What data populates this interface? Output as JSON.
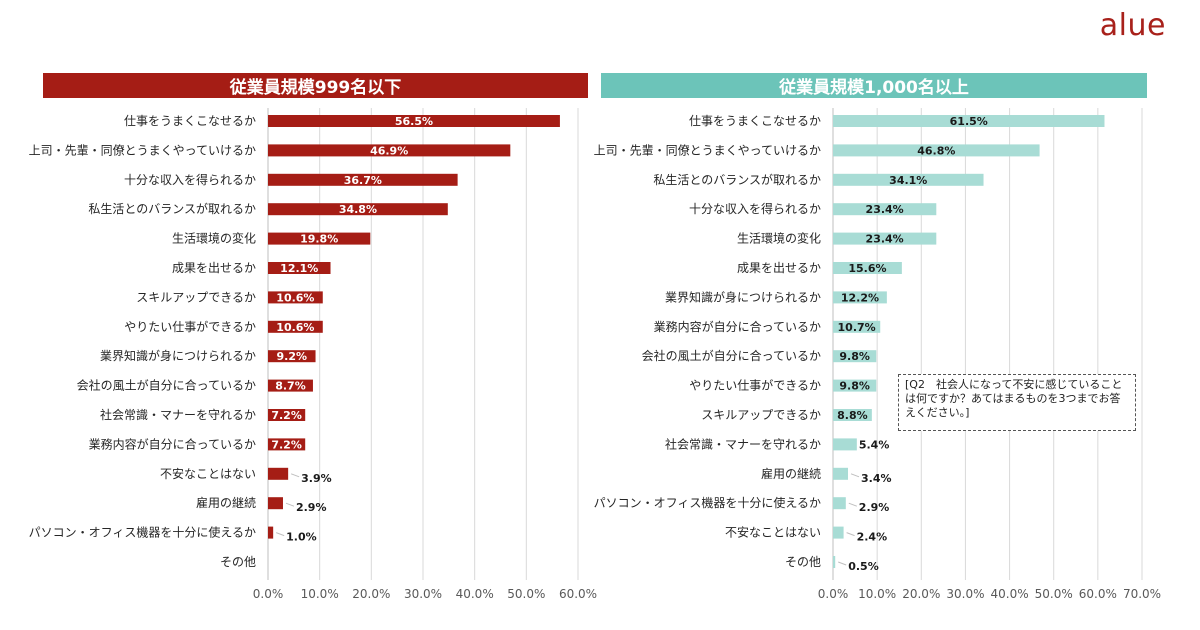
{
  "brand": {
    "logo_text": "alue",
    "accent": "#a8211b"
  },
  "note": {
    "text": "[Q2　社会人になって不安に感じていることは何ですか？あてはまるものを3つまでお答えください。]"
  },
  "chart_data": [
    {
      "type": "bar",
      "orientation": "horizontal",
      "title": "従業員規模999名以下",
      "color": "#a51d15",
      "categories": [
        "仕事をうまくこなせるか",
        "上司・先輩・同僚とうまくやっていけるか",
        "十分な収入を得られるか",
        "私生活とのバランスが取れるか",
        "生活環境の変化",
        "成果を出せるか",
        "スキルアップできるか",
        "やりたい仕事ができるか",
        "業界知識が身につけられるか",
        "会社の風土が自分に合っているか",
        "社会常識・マナーを守れるか",
        "業務内容が自分に合っているか",
        "不安なことはない",
        "雇用の継続",
        "パソコン・オフィス機器を十分に使えるか",
        "その他"
      ],
      "values": [
        56.5,
        46.9,
        36.7,
        34.8,
        19.8,
        12.1,
        10.6,
        10.6,
        9.2,
        8.7,
        7.2,
        7.2,
        3.9,
        2.9,
        1.0,
        0
      ],
      "labels": [
        "56.5%",
        "46.9%",
        "36.7%",
        "34.8%",
        "19.8%",
        "12.1%",
        "10.6%",
        "10.6%",
        "9.2%",
        "8.7%",
        "7.2%",
        "7.2%",
        "3.9%",
        "2.9%",
        "1.0%",
        ""
      ],
      "xlim": [
        0,
        60
      ],
      "ticks": [
        "0.0%",
        "10.0%",
        "20.0%",
        "30.0%",
        "40.0%",
        "50.0%",
        "60.0%"
      ]
    },
    {
      "type": "bar",
      "orientation": "horizontal",
      "title": "従業員規模1,000名以上",
      "color": "#a8dcd5",
      "categories": [
        "仕事をうまくこなせるか",
        "上司・先輩・同僚とうまくやっていけるか",
        "私生活とのバランスが取れるか",
        "十分な収入を得られるか",
        "生活環境の変化",
        "成果を出せるか",
        "業界知識が身につけられるか",
        "業務内容が自分に合っているか",
        "会社の風土が自分に合っているか",
        "やりたい仕事ができるか",
        "スキルアップできるか",
        "社会常識・マナーを守れるか",
        "雇用の継続",
        "パソコン・オフィス機器を十分に使えるか",
        "不安なことはない",
        "その他"
      ],
      "values": [
        61.5,
        46.8,
        34.1,
        23.4,
        23.4,
        15.6,
        12.2,
        10.7,
        9.8,
        9.8,
        8.8,
        5.4,
        3.4,
        2.9,
        2.4,
        0.5
      ],
      "labels": [
        "61.5%",
        "46.8%",
        "34.1%",
        "23.4%",
        "23.4%",
        "15.6%",
        "12.2%",
        "10.7%",
        "9.8%",
        "9.8%",
        "8.8%",
        "5.4%",
        "3.4%",
        "2.9%",
        "2.4%",
        "0.5%"
      ],
      "xlim": [
        0,
        70
      ],
      "ticks": [
        "0.0%",
        "10.0%",
        "20.0%",
        "30.0%",
        "40.0%",
        "50.0%",
        "60.0%",
        "70.0%"
      ]
    }
  ]
}
